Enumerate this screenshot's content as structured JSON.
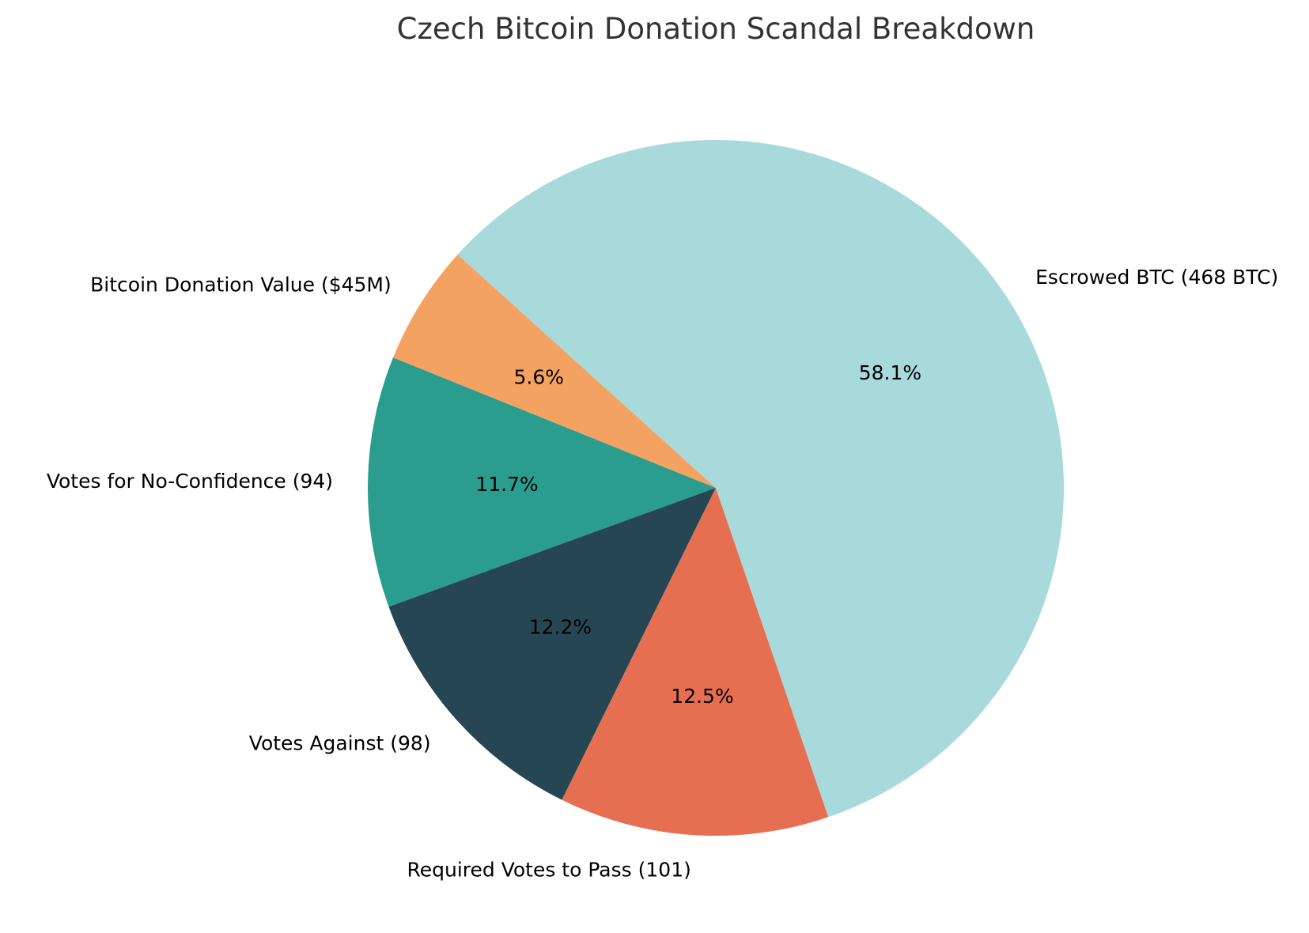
{
  "chart_data": {
    "type": "pie",
    "title": "Czech Bitcoin Donation Scandal Breakdown",
    "start_angle": 158,
    "direction": "counterclockwise",
    "slices": [
      {
        "label": "Votes for No-Confidence (94)",
        "value": 94,
        "pct_label": "11.7%",
        "color": "#2a9d8f"
      },
      {
        "label": "Votes Against (98)",
        "value": 98,
        "pct_label": "12.2%",
        "color": "#264653"
      },
      {
        "label": "Required Votes to Pass (101)",
        "value": 101,
        "pct_label": "12.5%",
        "color": "#e76f51"
      },
      {
        "label": "Escrowed BTC (468 BTC)",
        "value": 468,
        "pct_label": "58.1%",
        "color": "#a8dadc"
      },
      {
        "label": "Bitcoin Donation Value ($45M)",
        "value": 45,
        "pct_label": "5.6%",
        "color": "#f4a261"
      }
    ]
  }
}
